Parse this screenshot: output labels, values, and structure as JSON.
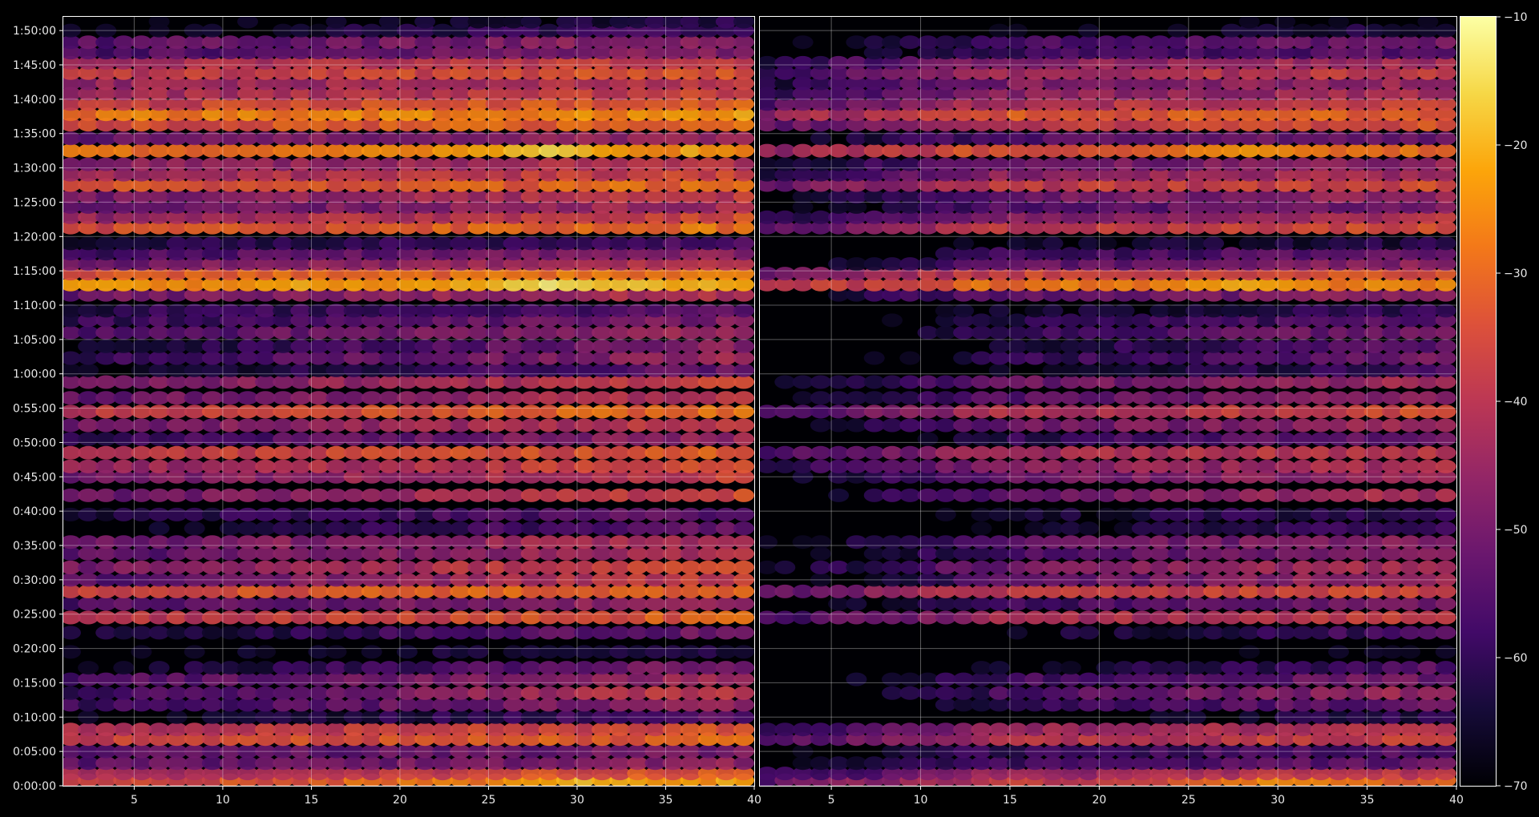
{
  "chart_data": {
    "type": "heatmap",
    "title": "",
    "xlabel": "",
    "ylabel": "",
    "colormap": "inferno",
    "background": "#000000",
    "grid": true,
    "panels": [
      {
        "name": "",
        "xlim": [
          1,
          40
        ],
        "xticks": [
          5,
          10,
          15,
          20,
          25,
          30,
          35,
          40
        ],
        "baseline": -58
      },
      {
        "name": "",
        "xlim": [
          1,
          40
        ],
        "xticks": [
          5,
          10,
          15,
          20,
          25,
          30,
          35,
          40
        ],
        "baseline": -64
      }
    ],
    "time_axis": {
      "range_seconds": [
        0,
        6720
      ],
      "tick_labels": [
        "0:00:00",
        "0:05:00",
        "0:10:00",
        "0:15:00",
        "0:20:00",
        "0:25:00",
        "0:30:00",
        "0:35:00",
        "0:40:00",
        "0:45:00",
        "0:50:00",
        "0:55:00",
        "1:00:00",
        "1:05:00",
        "1:10:00",
        "1:15:00",
        "1:20:00",
        "1:25:00",
        "1:30:00",
        "1:35:00",
        "1:40:00",
        "1:45:00",
        "1:50:00"
      ]
    },
    "colorbar": {
      "range": [
        -70,
        -10
      ],
      "tick_labels": [
        "−70",
        "−60",
        "−50",
        "−40",
        "−30",
        "−20",
        "−10"
      ],
      "tick_values": [
        -70,
        -60,
        -50,
        -40,
        -30,
        -20,
        -10
      ]
    },
    "bands": [
      {
        "time_min": 0.8,
        "level": -30,
        "slope": 0.35,
        "peak_x": 30,
        "peak": -18
      },
      {
        "time_min": 1.8,
        "level": -38,
        "slope": 0.3
      },
      {
        "time_min": 3.3,
        "level": -50,
        "slope": 0.2
      },
      {
        "time_min": 5.0,
        "level": -52,
        "slope": 0.15
      },
      {
        "time_min": 6.8,
        "level": -34,
        "slope": 0.2
      },
      {
        "time_min": 8.2,
        "level": -38,
        "slope": 0.2
      },
      {
        "time_min": 10.0,
        "level": -62,
        "slope": 0.4
      },
      {
        "time_min": 11.8,
        "level": -52,
        "slope": 0.35
      },
      {
        "time_min": 13.5,
        "level": -48,
        "slope": 0.55
      },
      {
        "time_min": 15.5,
        "level": -50,
        "slope": 0.3
      },
      {
        "time_min": 17.2,
        "level": -58,
        "slope": 0.5
      },
      {
        "time_min": 19.5,
        "level": -66,
        "slope": 0.2
      },
      {
        "time_min": 22.3,
        "level": -58,
        "slope": 0.4
      },
      {
        "time_min": 24.5,
        "level": -36,
        "slope": 0.25
      },
      {
        "time_min": 26.5,
        "level": -50,
        "slope": 0.3
      },
      {
        "time_min": 28.3,
        "level": -32,
        "slope": 0.15
      },
      {
        "time_min": 30.0,
        "level": -46,
        "slope": 0.5
      },
      {
        "time_min": 31.8,
        "level": -42,
        "slope": 0.4
      },
      {
        "time_min": 33.8,
        "level": -48,
        "slope": 0.35
      },
      {
        "time_min": 35.5,
        "level": -46,
        "slope": 0.3
      },
      {
        "time_min": 37.5,
        "level": -60,
        "slope": 0.4
      },
      {
        "time_min": 39.5,
        "level": -58,
        "slope": 0.3
      },
      {
        "time_min": 42.3,
        "level": -44,
        "slope": 0.45
      },
      {
        "time_min": 45.0,
        "level": -44,
        "slope": 0.35
      },
      {
        "time_min": 46.5,
        "level": -40,
        "slope": 0.25
      },
      {
        "time_min": 48.5,
        "level": -36,
        "slope": 0.2
      },
      {
        "time_min": 50.5,
        "level": -52,
        "slope": 0.4
      },
      {
        "time_min": 52.5,
        "level": -44,
        "slope": 0.35
      },
      {
        "time_min": 54.5,
        "level": -34,
        "slope": 0.3
      },
      {
        "time_min": 56.5,
        "level": -46,
        "slope": 0.35
      },
      {
        "time_min": 58.8,
        "level": -44,
        "slope": 0.4
      },
      {
        "time_min": 60.5,
        "level": -60,
        "slope": 0.45
      },
      {
        "time_min": 62.3,
        "level": -52,
        "slope": 0.4
      },
      {
        "time_min": 64.0,
        "level": -56,
        "slope": 0.5
      },
      {
        "time_min": 66.0,
        "level": -50,
        "slope": 0.35
      },
      {
        "time_min": 67.8,
        "level": -54,
        "slope": 0.3
      },
      {
        "time_min": 69.2,
        "level": -58,
        "slope": 0.2
      },
      {
        "time_min": 71.5,
        "level": -46,
        "slope": 0.3
      },
      {
        "time_min": 73.0,
        "level": -22,
        "slope": 0.1,
        "peak_x": 28,
        "peak": -14
      },
      {
        "time_min": 74.6,
        "level": -30,
        "slope": 0.15
      },
      {
        "time_min": 76.0,
        "level": -46,
        "slope": 0.3
      },
      {
        "time_min": 77.5,
        "level": -52,
        "slope": 0.3
      },
      {
        "time_min": 79.0,
        "level": -60,
        "slope": 0.2
      },
      {
        "time_min": 81.3,
        "level": -32,
        "slope": 0.2
      },
      {
        "time_min": 82.8,
        "level": -40,
        "slope": 0.3
      },
      {
        "time_min": 84.3,
        "level": -48,
        "slope": 0.3
      },
      {
        "time_min": 85.8,
        "level": -44,
        "slope": 0.3
      },
      {
        "time_min": 87.5,
        "level": -32,
        "slope": 0.15
      },
      {
        "time_min": 89.0,
        "level": -40,
        "slope": 0.2
      },
      {
        "time_min": 90.5,
        "level": -44,
        "slope": 0.2
      },
      {
        "time_min": 92.5,
        "level": -26,
        "slope": 0.15,
        "peak_x": 28,
        "peak": -16
      },
      {
        "time_min": 94.3,
        "level": -48,
        "slope": 0.2
      },
      {
        "time_min": 96.3,
        "level": -32,
        "slope": 0.2
      },
      {
        "time_min": 97.8,
        "level": -26,
        "slope": 0.1
      },
      {
        "time_min": 99.3,
        "level": -34,
        "slope": 0.2
      },
      {
        "time_min": 100.8,
        "level": -40,
        "slope": 0.2
      },
      {
        "time_min": 102.3,
        "level": -42,
        "slope": 0.2
      },
      {
        "time_min": 103.8,
        "level": -36,
        "slope": 0.2
      },
      {
        "time_min": 105.3,
        "level": -40,
        "slope": 0.2
      },
      {
        "time_min": 106.8,
        "level": -52,
        "slope": 0.25
      },
      {
        "time_min": 108.3,
        "level": -50,
        "slope": 0.25
      },
      {
        "time_min": 110.0,
        "level": -62,
        "slope": 0.3
      },
      {
        "time_min": 111.3,
        "level": -66,
        "slope": 0.2
      }
    ]
  }
}
